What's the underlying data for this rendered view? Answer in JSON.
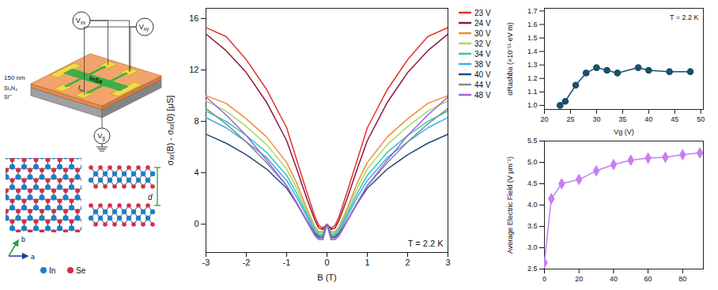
{
  "chart_data": [
    {
      "type": "line",
      "x_label": "B (T)",
      "y_label": "σₓₓ(B) - σₓₓ(0) [μS]",
      "annotation": "T = 2.2 K",
      "x": [
        -3,
        -2.5,
        -2,
        -1.5,
        -1,
        -0.75,
        -0.5,
        -0.3,
        -0.2,
        -0.1,
        0,
        0.1,
        0.2,
        0.3,
        0.5,
        0.75,
        1,
        1.5,
        2,
        2.5,
        3
      ],
      "series": [
        {
          "name": "23 V",
          "color": "#e8302c",
          "values": [
            15.3,
            14.6,
            12.8,
            10.5,
            7.5,
            5.0,
            2.5,
            0.6,
            -0.1,
            -0.3,
            0,
            -0.3,
            -0.1,
            0.6,
            2.5,
            5.0,
            7.5,
            10.5,
            12.8,
            14.6,
            15.3
          ]
        },
        {
          "name": "24 V",
          "color": "#8b1a3a",
          "values": [
            14.8,
            13.5,
            11.8,
            9.5,
            6.5,
            4.3,
            2.0,
            0.3,
            -0.3,
            -0.4,
            0,
            -0.4,
            -0.3,
            0.3,
            2.0,
            4.3,
            6.5,
            9.5,
            11.8,
            13.5,
            14.8
          ]
        },
        {
          "name": "30 V",
          "color": "#f28a2e",
          "values": [
            10.0,
            9.4,
            8.2,
            6.8,
            4.8,
            3.2,
            1.2,
            -0.2,
            -0.6,
            -0.6,
            0,
            -0.6,
            -0.6,
            -0.2,
            1.2,
            3.2,
            4.8,
            6.8,
            8.2,
            9.4,
            10.0
          ]
        },
        {
          "name": "32 V",
          "color": "#a8d86a",
          "values": [
            9.6,
            8.8,
            7.6,
            6.2,
            4.3,
            2.8,
            1.0,
            -0.3,
            -0.7,
            -0.7,
            0,
            -0.7,
            -0.7,
            -0.3,
            1.0,
            2.8,
            4.3,
            6.2,
            7.6,
            8.8,
            9.6
          ]
        },
        {
          "name": "34 V",
          "color": "#2fc7b5",
          "values": [
            8.8,
            8.0,
            6.9,
            5.6,
            3.8,
            2.4,
            0.8,
            -0.4,
            -0.8,
            -0.8,
            0,
            -0.8,
            -0.8,
            -0.4,
            0.8,
            2.4,
            3.8,
            5.6,
            6.9,
            8.0,
            8.8
          ]
        },
        {
          "name": "38 V",
          "color": "#3aaee8",
          "values": [
            8.3,
            7.5,
            6.4,
            5.2,
            3.4,
            2.1,
            0.6,
            -0.6,
            -0.9,
            -0.9,
            0,
            -0.9,
            -0.9,
            -0.6,
            0.6,
            2.1,
            3.4,
            5.2,
            6.4,
            7.5,
            8.3
          ]
        },
        {
          "name": "40 V",
          "color": "#1f4e79",
          "values": [
            7.0,
            6.3,
            5.4,
            4.3,
            2.8,
            1.6,
            0.3,
            -0.7,
            -1.0,
            -1.0,
            0,
            -1.0,
            -1.0,
            -0.7,
            0.3,
            1.6,
            2.8,
            4.3,
            5.4,
            6.3,
            7.0
          ]
        },
        {
          "name": "44 V",
          "color": "#8c8c8c",
          "values": [
            9.0,
            7.8,
            6.4,
            4.8,
            3.0,
            1.7,
            0.3,
            -0.8,
            -1.1,
            -1.1,
            0,
            -1.1,
            -1.1,
            -0.8,
            0.3,
            1.7,
            3.0,
            4.8,
            6.4,
            7.8,
            9.0
          ]
        },
        {
          "name": "48 V",
          "color": "#a35ee0",
          "values": [
            9.9,
            8.5,
            6.9,
            5.0,
            3.0,
            1.6,
            0.2,
            -0.9,
            -1.2,
            -1.2,
            0,
            -1.2,
            -1.2,
            -0.9,
            0.2,
            1.6,
            3.0,
            5.0,
            6.9,
            8.5,
            9.9
          ]
        }
      ],
      "xlim": [
        -3,
        3
      ],
      "xticks": [
        -3,
        -2,
        -1,
        0,
        1,
        2,
        3
      ],
      "ylim": [
        -2.2,
        16.8
      ],
      "yticks": [
        0,
        4,
        8,
        12,
        16
      ],
      "grid": false,
      "legend": "right"
    },
    {
      "type": "line",
      "marker": "circle",
      "color": "#1b4f6b",
      "x_label": "Vg (V)",
      "y_label": "αRashba (×10⁻¹¹ eV m)",
      "annotation": "T = 2.2 K",
      "x": [
        23,
        24,
        26,
        28,
        30,
        32,
        34,
        38,
        40,
        44,
        48
      ],
      "values": [
        1.0,
        1.03,
        1.15,
        1.24,
        1.28,
        1.26,
        1.24,
        1.28,
        1.26,
        1.25,
        1.25
      ],
      "xlim": [
        20,
        50.5
      ],
      "xticks": [
        20,
        25,
        30,
        35,
        40,
        45,
        50
      ],
      "ylim": [
        0.97,
        1.72
      ],
      "yticks": [
        {
          "value": 1,
          "label": "1.0"
        },
        1.1,
        1.2,
        1.3,
        1.4,
        1.5,
        1.6,
        1.7
      ],
      "grid": false
    },
    {
      "type": "line",
      "marker": "diamond",
      "color": "#c77ef0",
      "y_label": "Average Electric Field (V μm⁻¹)",
      "x": [
        0,
        4,
        10,
        20,
        30,
        40,
        50,
        60,
        70,
        80,
        90
      ],
      "values": [
        2.65,
        4.15,
        4.5,
        4.6,
        4.8,
        4.95,
        5.05,
        5.1,
        5.12,
        5.18,
        5.22
      ],
      "xlim": [
        0,
        92
      ],
      "xticks": [
        0,
        20,
        40,
        60,
        80
      ],
      "ylim": [
        2.5,
        5.5
      ],
      "yticks": [
        2.5,
        {
          "value": 3,
          "label": "3.0"
        },
        3.5,
        {
          "value": 4,
          "label": "4.0"
        },
        4.5,
        {
          "value": 5,
          "label": "5.0"
        },
        5.5
      ],
      "grid": false
    }
  ],
  "device_schematic": {
    "voltmeter_xx": {
      "text": "V",
      "sub": "xx"
    },
    "voltmeter_xy": {
      "text": "V",
      "sub": "xy"
    },
    "channel": "InSe",
    "current": {
      "text": "I",
      "sub": "xx"
    },
    "gate": {
      "text": "V",
      "sub": "g"
    },
    "thickness": "150 nm",
    "dielectric": "Si₃N₄",
    "substrate": "Si⁺⁺"
  },
  "crystal_structure": {
    "atoms": [
      {
        "label": "In",
        "color": "#1e7fc8"
      },
      {
        "label": "Se",
        "color": "#d42e4c"
      }
    ],
    "axes": [
      "a",
      "b"
    ],
    "interlayer_distance": "d"
  }
}
